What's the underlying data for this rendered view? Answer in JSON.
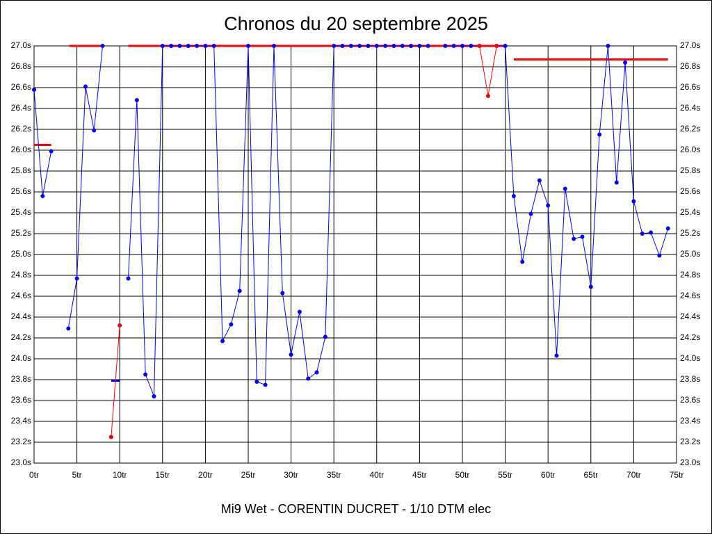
{
  "chart_data": {
    "type": "line",
    "title": "Chronos du 20 septembre 2025",
    "x_label": "Mi9 Wet - CORENTIN DUCRET - 1/10 DTM elec",
    "x": [
      0,
      1,
      2,
      3,
      4,
      5,
      6,
      7,
      8,
      9,
      10,
      11,
      12,
      13,
      14,
      15,
      16,
      17,
      18,
      19,
      20,
      21,
      22,
      23,
      24,
      25,
      26,
      27,
      28,
      29,
      30,
      31,
      32,
      33,
      34,
      35,
      36,
      37,
      38,
      39,
      40,
      41,
      42,
      43,
      44,
      45,
      46,
      47,
      48,
      49,
      50,
      51,
      52,
      53,
      54,
      55,
      56,
      57,
      58,
      59,
      60,
      61,
      62,
      63,
      64,
      65,
      66,
      67,
      68,
      69,
      70,
      71,
      72,
      73,
      74
    ],
    "series": [
      {
        "color": "#0000ff",
        "values": [
          26.58,
          25.56,
          25.99,
          null,
          24.29,
          24.77,
          26.61,
          26.19,
          27.0,
          null,
          null,
          24.77,
          26.48,
          23.85,
          23.64,
          27.0,
          27.0,
          27.0,
          27.0,
          27.0,
          27.0,
          27.0,
          24.17,
          24.33,
          24.65,
          27.0,
          23.78,
          23.75,
          27.0,
          24.63,
          24.04,
          24.45,
          23.81,
          23.87,
          24.21,
          27.0,
          27.0,
          27.0,
          27.0,
          27.0,
          27.0,
          27.0,
          27.0,
          27.0,
          27.0,
          27.0,
          27.0,
          null,
          27.0,
          27.0,
          27.0,
          27.0,
          27.0,
          null,
          27.0,
          27.0,
          25.56,
          24.93,
          25.39,
          25.71,
          25.47,
          24.03,
          25.63,
          25.15,
          25.17,
          24.69,
          26.15,
          27.0,
          25.69,
          26.84,
          25.51,
          25.2,
          25.21,
          24.99,
          25.25
        ]
      },
      {
        "color": "#ff0000",
        "values": [
          null,
          null,
          null,
          null,
          null,
          null,
          null,
          null,
          null,
          23.25,
          24.32,
          null,
          null,
          null,
          null,
          null,
          null,
          null,
          null,
          null,
          null,
          null,
          null,
          null,
          null,
          null,
          null,
          null,
          null,
          null,
          null,
          null,
          null,
          null,
          null,
          null,
          null,
          null,
          null,
          null,
          null,
          null,
          null,
          null,
          null,
          null,
          null,
          null,
          null,
          null,
          null,
          null,
          27.0,
          26.52,
          27.0,
          null,
          null,
          null,
          null,
          null,
          null,
          null,
          null,
          null,
          null,
          null,
          null,
          null,
          null,
          null,
          null,
          null,
          null,
          null,
          null
        ]
      }
    ],
    "segments": [
      {
        "x": [
          0,
          2
        ],
        "y": 26.05,
        "color": "#ff0000"
      },
      {
        "x": [
          4.1,
          8
        ],
        "y": 27.0,
        "color": "#ff0000"
      },
      {
        "x": [
          11,
          55
        ],
        "y": 27.0,
        "color": "#ff0000"
      },
      {
        "x": [
          56,
          74
        ],
        "y": 26.87,
        "color": "#ff0000"
      },
      {
        "x": [
          9,
          10
        ],
        "y": 23.79,
        "color": "#0000ff"
      }
    ],
    "xlim": [
      0,
      75
    ],
    "ylim": [
      23.0,
      27.0
    ],
    "xticks": [
      {
        "value": 0,
        "label": "0tr"
      },
      {
        "value": 5,
        "label": "5tr"
      },
      {
        "value": 10,
        "label": "10tr"
      },
      {
        "value": 15,
        "label": "15tr"
      },
      {
        "value": 20,
        "label": "20tr"
      },
      {
        "value": 25,
        "label": "25tr"
      },
      {
        "value": 30,
        "label": "30tr"
      },
      {
        "value": 35,
        "label": "35tr"
      },
      {
        "value": 40,
        "label": "40tr"
      },
      {
        "value": 45,
        "label": "45tr"
      },
      {
        "value": 50,
        "label": "50tr"
      },
      {
        "value": 55,
        "label": "55tr"
      },
      {
        "value": 60,
        "label": "60tr"
      },
      {
        "value": 65,
        "label": "65tr"
      },
      {
        "value": 70,
        "label": "70tr"
      },
      {
        "value": 75,
        "label": "75tr"
      }
    ],
    "yticks": [
      {
        "value": 23.0,
        "label": "23.0s"
      },
      {
        "value": 23.2,
        "label": "23.2s"
      },
      {
        "value": 23.4,
        "label": "23.4s"
      },
      {
        "value": 23.6,
        "label": "23.6s"
      },
      {
        "value": 23.8,
        "label": "23.8s"
      },
      {
        "value": 24.0,
        "label": "24.0s"
      },
      {
        "value": 24.2,
        "label": "24.2s"
      },
      {
        "value": 24.4,
        "label": "24.4s"
      },
      {
        "value": 24.6,
        "label": "24.6s"
      },
      {
        "value": 24.8,
        "label": "24.8s"
      },
      {
        "value": 25.0,
        "label": "25.0s"
      },
      {
        "value": 25.2,
        "label": "25.2s"
      },
      {
        "value": 25.4,
        "label": "25.4s"
      },
      {
        "value": 25.6,
        "label": "25.6s"
      },
      {
        "value": 25.8,
        "label": "25.8s"
      },
      {
        "value": 26.0,
        "label": "26.0s"
      },
      {
        "value": 26.2,
        "label": "26.2s"
      },
      {
        "value": 26.4,
        "label": "26.4s"
      },
      {
        "value": 26.6,
        "label": "26.6s"
      },
      {
        "value": 26.8,
        "label": "26.8s"
      },
      {
        "value": 27.0,
        "label": "27.0s"
      }
    ],
    "grid": true
  }
}
